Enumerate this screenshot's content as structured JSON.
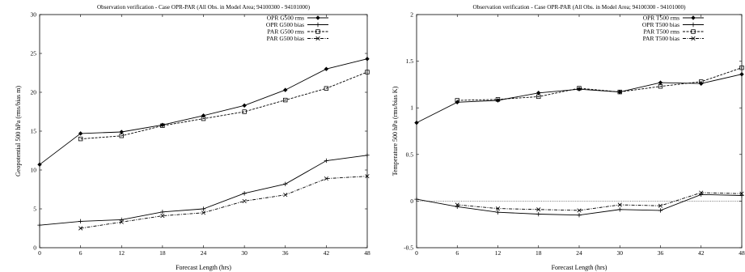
{
  "chart_data": [
    {
      "type": "line",
      "title": "Observation verification - Case OPR-PAR (All Obs. in Model Area; 94100300 - 94101000)",
      "xlabel": "Forecast Length (hrs)",
      "ylabel": "Geopotential 500 hPa (rms/bias m)",
      "xlim": [
        0,
        48
      ],
      "ylim": [
        0,
        30
      ],
      "xticks": [
        0,
        6,
        12,
        18,
        24,
        30,
        36,
        42,
        48
      ],
      "yticks": [
        0,
        5,
        10,
        15,
        20,
        25,
        30
      ],
      "grid": false,
      "legend_position": "top-right",
      "series": [
        {
          "name": "OPR G500 rms",
          "marker": "diamond",
          "dash": "solid",
          "x": [
            0,
            6,
            12,
            18,
            24,
            30,
            36,
            42,
            48
          ],
          "y": [
            10.7,
            14.7,
            14.9,
            15.8,
            17.0,
            18.3,
            20.3,
            23.0,
            24.3
          ]
        },
        {
          "name": "OPR G500 bias",
          "marker": "plus",
          "dash": "solid",
          "x": [
            0,
            6,
            12,
            18,
            24,
            30,
            36,
            42,
            48
          ],
          "y": [
            2.9,
            3.4,
            3.6,
            4.6,
            5.0,
            7.0,
            8.2,
            11.2,
            11.9
          ]
        },
        {
          "name": "PAR G500 rms",
          "marker": "square",
          "dash": "dashed",
          "x": [
            6,
            12,
            18,
            24,
            30,
            36,
            42,
            48
          ],
          "y": [
            14.0,
            14.4,
            15.7,
            16.6,
            17.5,
            19.0,
            20.5,
            22.6
          ]
        },
        {
          "name": "PAR G500 bias",
          "marker": "cross",
          "dash": "dashdot",
          "x": [
            6,
            12,
            18,
            24,
            30,
            36,
            42,
            48
          ],
          "y": [
            2.5,
            3.3,
            4.1,
            4.5,
            6.0,
            6.8,
            8.9,
            9.2
          ]
        }
      ]
    },
    {
      "type": "line",
      "title": "Observation verification - Case OPR-PAR (All Obs. in Model Area; 94100300 - 94101000)",
      "xlabel": "Forecast Length (hrs)",
      "ylabel": "Temperature 500 hPa (rms/bias K)",
      "xlim": [
        0,
        48
      ],
      "ylim": [
        -0.5,
        2
      ],
      "xticks": [
        0,
        6,
        12,
        18,
        24,
        30,
        36,
        42,
        48
      ],
      "yticks": [
        -0.5,
        0,
        0.5,
        1,
        1.5,
        2
      ],
      "grid": false,
      "zero_line": true,
      "legend_position": "top-right",
      "series": [
        {
          "name": "OPR T500 rms",
          "marker": "diamond",
          "dash": "solid",
          "x": [
            0,
            6,
            12,
            18,
            24,
            30,
            36,
            42,
            48
          ],
          "y": [
            0.84,
            1.06,
            1.08,
            1.16,
            1.2,
            1.17,
            1.27,
            1.26,
            1.36
          ]
        },
        {
          "name": "OPR T500 bias",
          "marker": "plus",
          "dash": "solid",
          "x": [
            0,
            6,
            12,
            18,
            24,
            30,
            36,
            42,
            48
          ],
          "y": [
            0.02,
            -0.06,
            -0.12,
            -0.14,
            -0.15,
            -0.09,
            -0.1,
            0.07,
            0.06
          ]
        },
        {
          "name": "PAR T500 rms",
          "marker": "square",
          "dash": "dashed",
          "x": [
            6,
            12,
            18,
            24,
            30,
            36,
            42,
            48
          ],
          "y": [
            1.08,
            1.09,
            1.12,
            1.21,
            1.17,
            1.23,
            1.28,
            1.43
          ]
        },
        {
          "name": "PAR T500 bias",
          "marker": "cross",
          "dash": "dashdot",
          "x": [
            6,
            12,
            18,
            24,
            30,
            36,
            42,
            48
          ],
          "y": [
            -0.04,
            -0.08,
            -0.09,
            -0.1,
            -0.04,
            -0.05,
            0.09,
            0.08
          ]
        }
      ]
    }
  ]
}
